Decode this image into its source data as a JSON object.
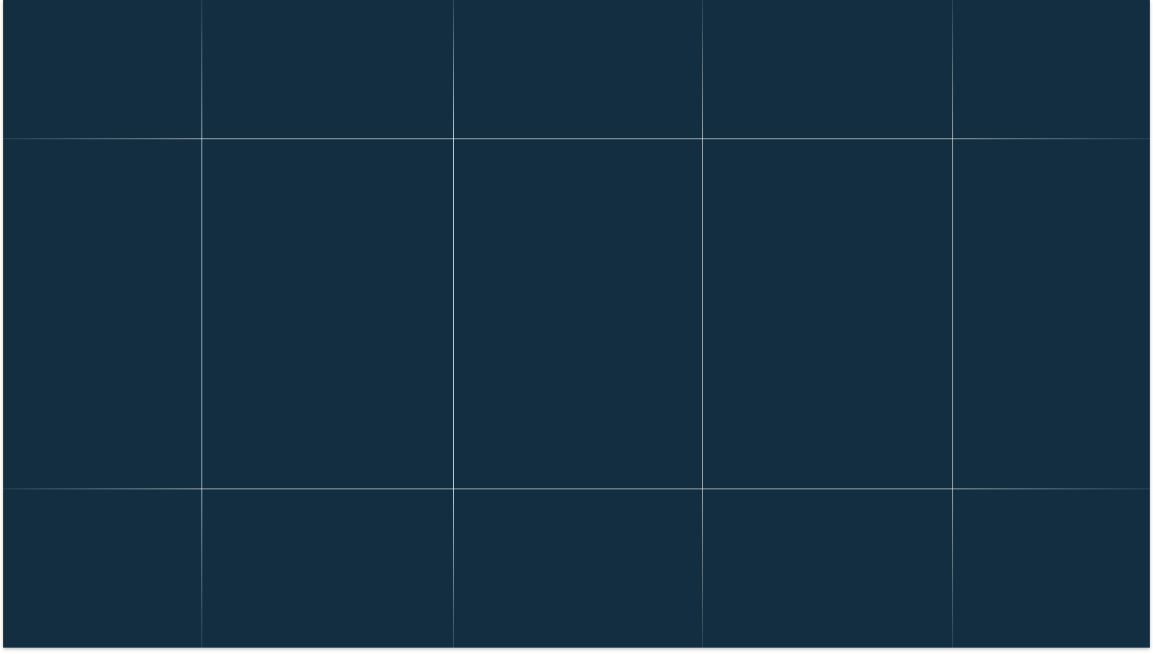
{
  "canvas": {
    "background_color": "#132e40",
    "guide_color": "#dce4e8"
  },
  "guides": {
    "vertical_count": 4,
    "horizontal_count": 2
  }
}
